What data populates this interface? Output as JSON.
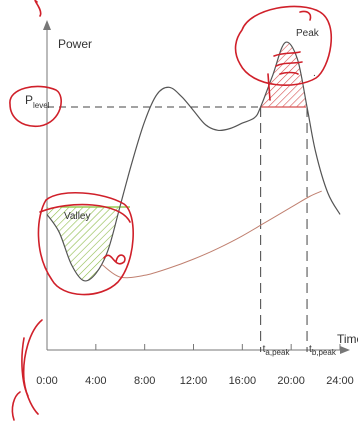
{
  "chart_data": {
    "type": "line",
    "ylabel": "Power",
    "xlabel": "Time",
    "x_ticks": [
      "0:00",
      "4:00",
      "8:00",
      "12:00",
      "16:00",
      "20:00",
      "24:00"
    ],
    "xlim": [
      0,
      24
    ],
    "level_label": "P",
    "level_label_sub": "level",
    "annotations": {
      "valley": "Valley",
      "peak": "Peak"
    },
    "t_marker_a": {
      "main": "t",
      "sub": "a,peak"
    },
    "t_marker_b": {
      "main": "t",
      "sub": "b,peak"
    },
    "t_a_peak": 17.5,
    "t_b_peak": 21.3,
    "series": [
      {
        "values": [
          [
            0.0,
            0.4
          ],
          [
            1.0,
            0.3
          ],
          [
            2.0,
            0.12
          ],
          [
            3.0,
            0.03
          ],
          [
            4.0,
            0.07
          ],
          [
            5.0,
            0.2
          ],
          [
            6.0,
            0.45
          ],
          [
            7.0,
            0.7
          ],
          [
            8.0,
            0.92
          ],
          [
            9.0,
            1.07
          ],
          [
            10.0,
            1.11
          ],
          [
            11.0,
            1.06
          ],
          [
            12.0,
            0.98
          ],
          [
            13.0,
            0.9
          ],
          [
            14.0,
            0.87
          ],
          [
            15.0,
            0.88
          ],
          [
            16.0,
            0.91
          ],
          [
            17.0,
            0.94
          ],
          [
            17.5,
            1.0
          ],
          [
            18.5,
            1.18
          ],
          [
            19.5,
            1.36
          ],
          [
            20.5,
            1.27
          ],
          [
            21.3,
            1.0
          ],
          [
            22.0,
            0.75
          ],
          [
            23.0,
            0.52
          ],
          [
            24.0,
            0.4
          ]
        ]
      },
      {
        "values": [
          [
            4.5,
            0.12
          ],
          [
            6.0,
            0.05
          ],
          [
            8.0,
            0.06
          ],
          [
            10.0,
            0.1
          ],
          [
            12.0,
            0.15
          ],
          [
            14.0,
            0.21
          ],
          [
            16.0,
            0.28
          ],
          [
            18.0,
            0.36
          ],
          [
            20.0,
            0.44
          ],
          [
            21.5,
            0.5
          ],
          [
            22.5,
            0.53
          ]
        ]
      }
    ],
    "level_value": 1.0,
    "colors": {
      "curve": "#555555",
      "shifted": "#c08070",
      "valley_fill": "#9acc55",
      "peak_fill": "#d85a5a",
      "ink": "#d0202a"
    }
  }
}
